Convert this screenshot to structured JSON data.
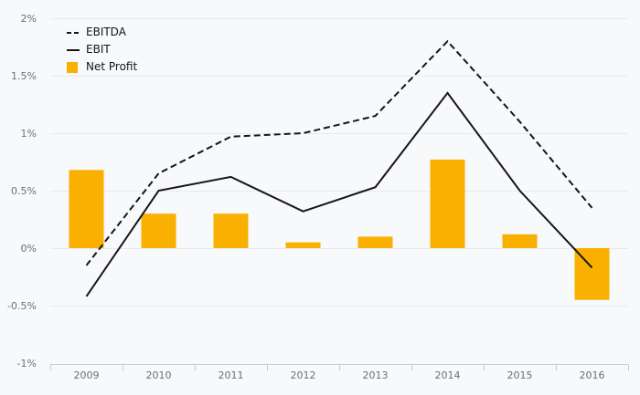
{
  "legend": {
    "items": [
      {
        "label": "EBITDA",
        "marker": "dashed-line"
      },
      {
        "label": "EBIT",
        "marker": "solid-line"
      },
      {
        "label": "Net Profit",
        "marker": "square"
      }
    ]
  },
  "y_axis": {
    "ticks": [
      {
        "label": "2%",
        "value": 2
      },
      {
        "label": "1.5%",
        "value": 1.5
      },
      {
        "label": "1%",
        "value": 1
      },
      {
        "label": "0.5%",
        "value": 0.5
      },
      {
        "label": "0%",
        "value": 0
      },
      {
        "label": "-0.5%",
        "value": -0.5
      },
      {
        "label": "-1%",
        "value": -1
      }
    ]
  },
  "chart_data": {
    "type": "combo",
    "subtype": "bar+line",
    "title": "",
    "xlabel": "",
    "ylabel": "",
    "unit": "%",
    "categories": [
      "2009",
      "2010",
      "2011",
      "2012",
      "2013",
      "2014",
      "2015",
      "2016"
    ],
    "series": [
      {
        "name": "EBITDA",
        "type": "line",
        "line_style": "dashed",
        "color": "#15151a",
        "values": [
          -0.15,
          0.65,
          0.97,
          1.0,
          1.15,
          1.8,
          1.1,
          0.35
        ]
      },
      {
        "name": "EBIT",
        "type": "line",
        "line_style": "solid",
        "color": "#15151a",
        "values": [
          -0.42,
          0.5,
          0.62,
          0.32,
          0.53,
          1.35,
          0.5,
          -0.17
        ]
      },
      {
        "name": "Net Profit",
        "type": "bar",
        "color": "#f9b000",
        "values": [
          0.68,
          0.3,
          0.3,
          0.05,
          0.1,
          0.77,
          0.12,
          -0.45
        ]
      }
    ],
    "ylim": [
      -1,
      2
    ],
    "grid": "horizontal",
    "legend_position": "top-left"
  },
  "colors": {
    "background": "#f8f9fa",
    "grid": "#e8e9ec",
    "axis": "#c2cbde",
    "axis_label": "#6e6e78",
    "bar": "#f9b000",
    "line": "#15151a",
    "legend_text": "#15151a"
  }
}
